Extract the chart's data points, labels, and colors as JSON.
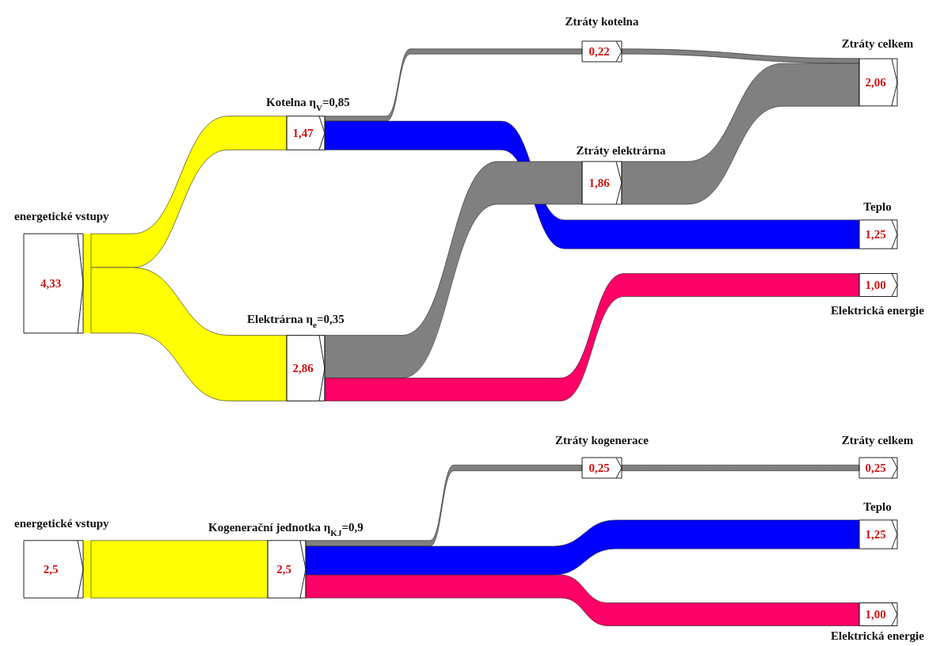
{
  "chart_data": [
    {
      "type": "other",
      "categories": [
        "energetické vstupy",
        "Kotelna  η$_{V}$=0,85",
        "Elektrárna  η$_{e}$=0,35",
        "Ztráty kotelna",
        "Ztráty elektrárna",
        "Ztráty celkem",
        "Teplo",
        "Elektrická energie"
      ],
      "values": [
        4.33,
        1.47,
        2.86,
        0.22,
        1.86,
        2.06,
        1.25,
        1.0
      ],
      "value_labels": [
        "4,33",
        "1,47",
        "2,86",
        "0,22",
        "1,86",
        "2,06",
        "1,25",
        "1,00"
      ],
      "colors": [
        "#ffff00",
        "#ffff00",
        "#ffff00",
        "#808080",
        "#808080",
        "#808080",
        "#0000ff",
        "#ff0066"
      ]
    },
    {
      "type": "other",
      "categories": [
        "energetické vstupy",
        "Kogenerační jednotka  η$_{KJ}$=0,9",
        "Ztráty kogenerace",
        "Ztráty celkem",
        "Teplo",
        "Elektrická energie"
      ],
      "values": [
        2.5,
        2.5,
        0.25,
        0.25,
        1.25,
        1.0
      ],
      "value_labels": [
        "2,5",
        "2,5",
        "0,25",
        "0,25",
        "1,25",
        "1,00"
      ],
      "colors": [
        "#ffff00",
        "#ffff00",
        "#808080",
        "#808080",
        "#0000ff",
        "#ff0066"
      ]
    }
  ]
}
